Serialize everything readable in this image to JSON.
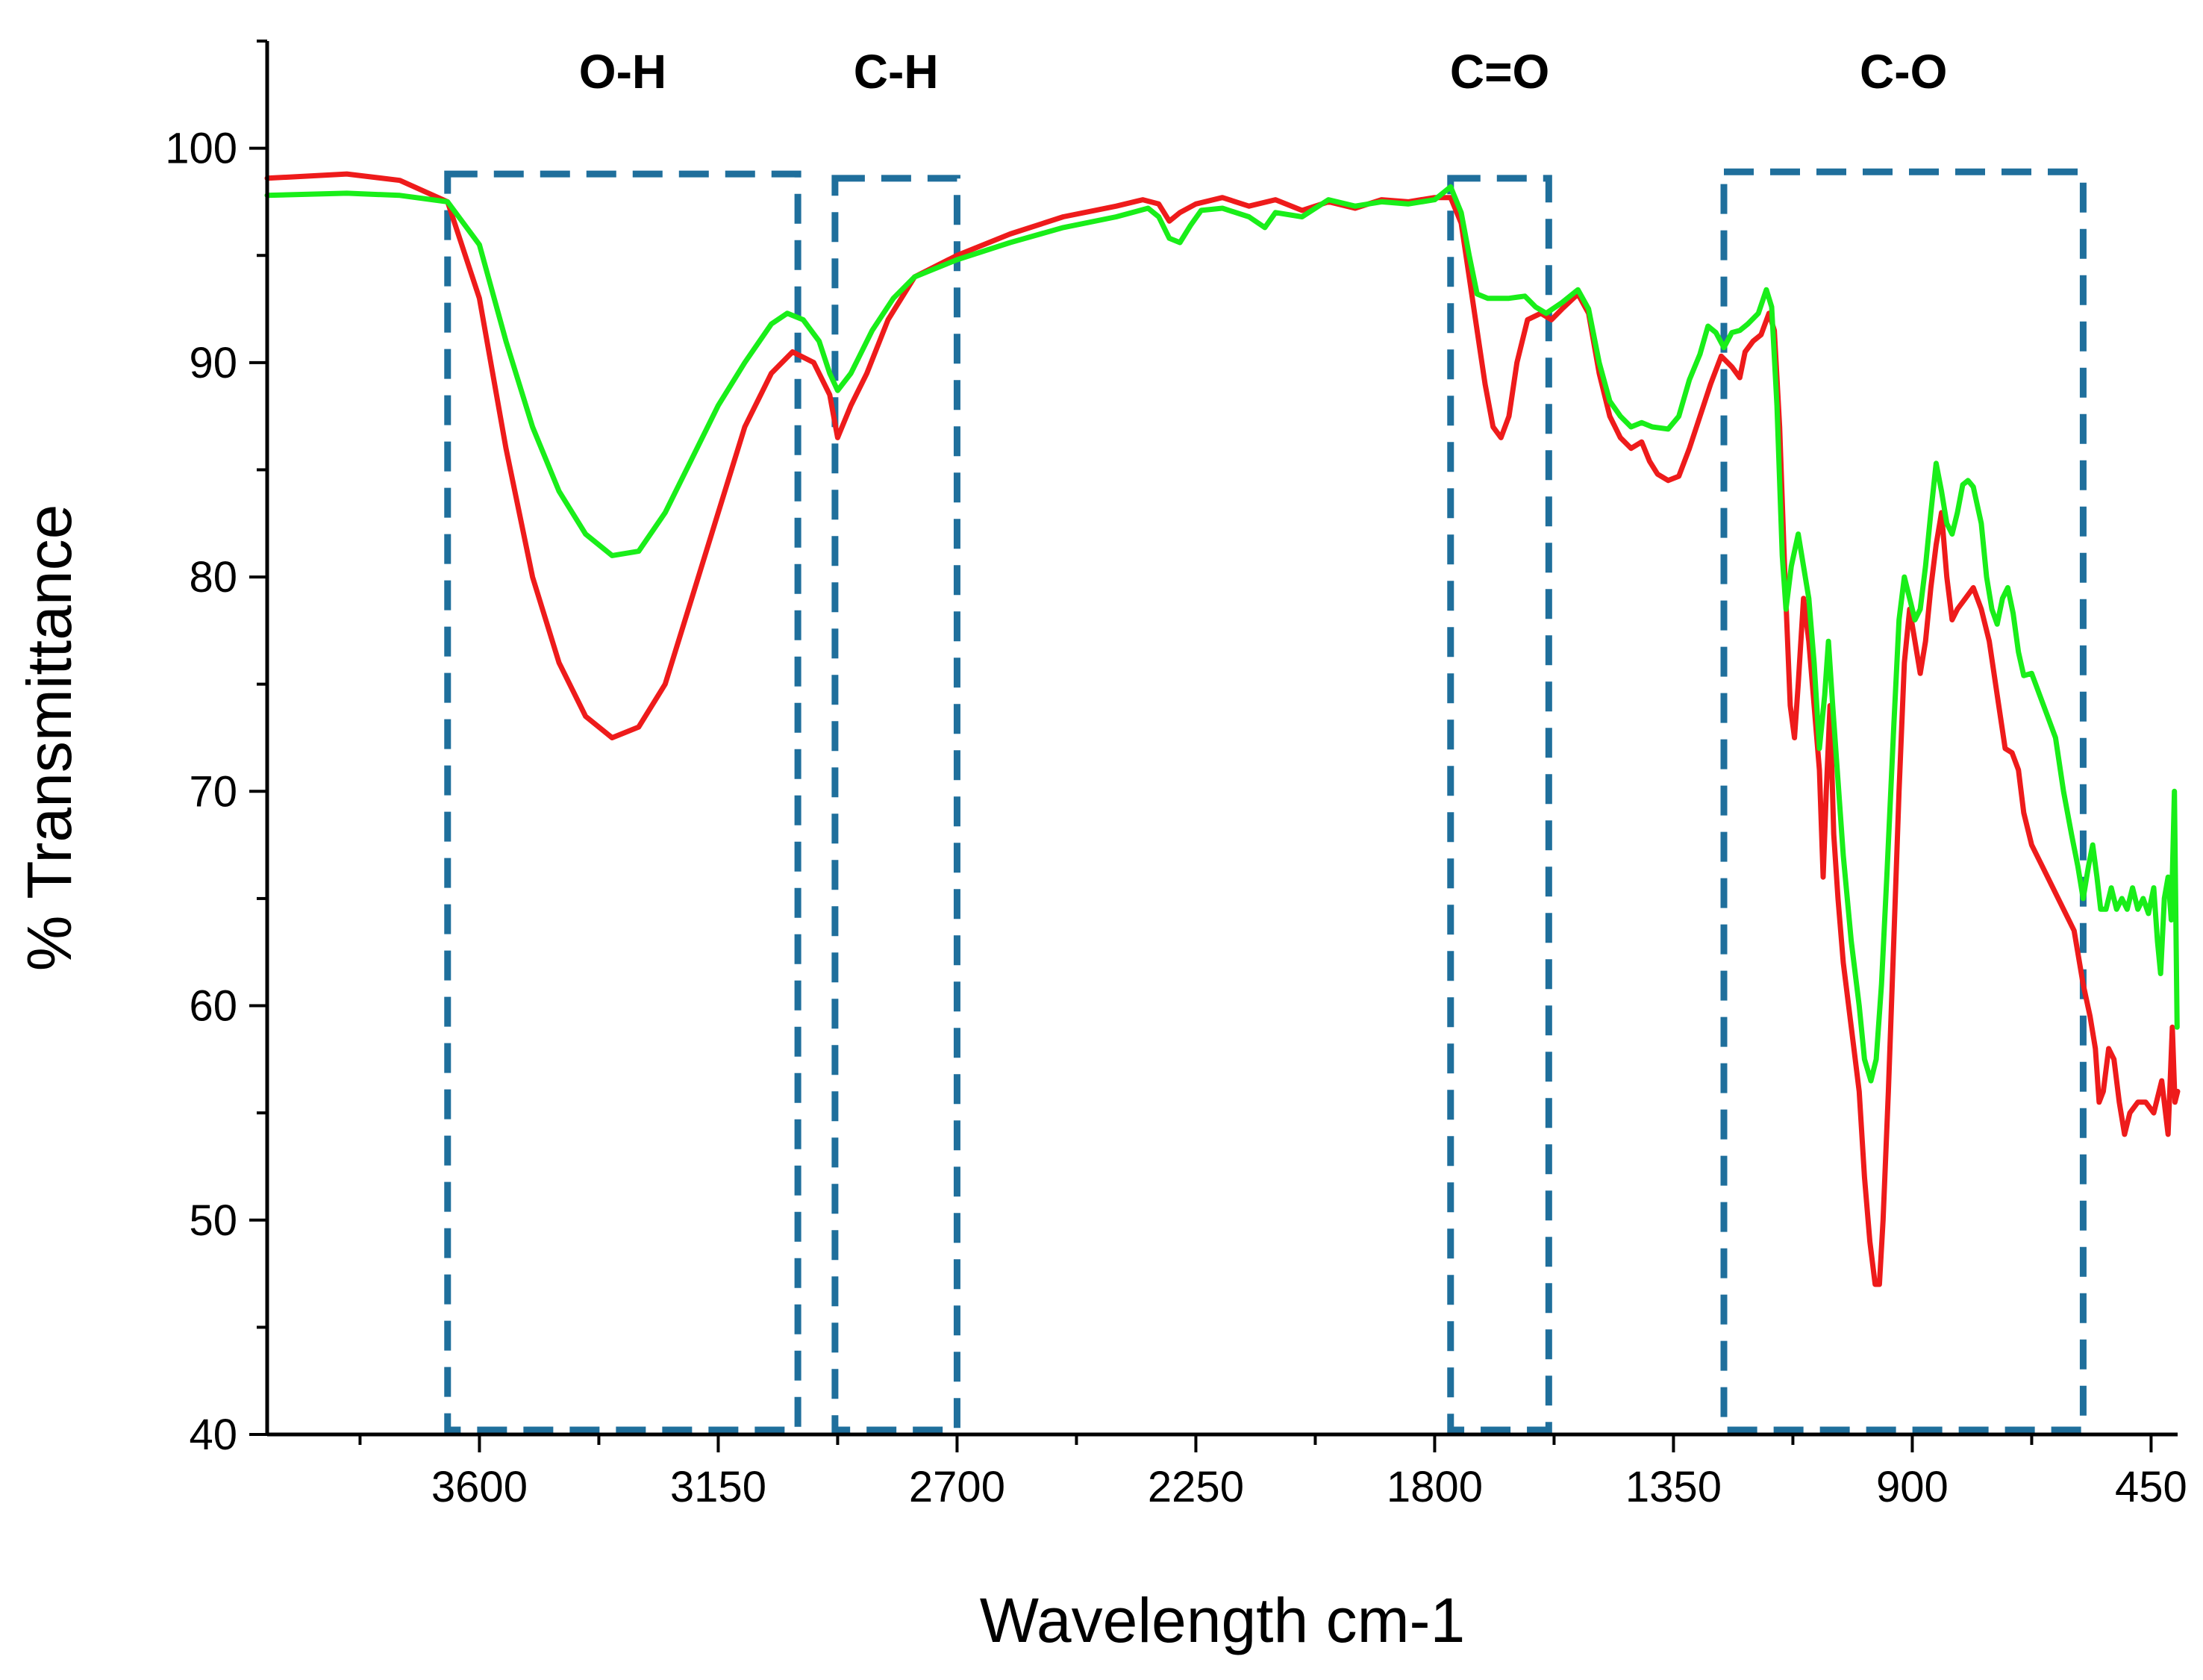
{
  "chart_data": {
    "type": "line",
    "title": "",
    "xlabel": "Wavelength cm-1",
    "ylabel": "% Transmittance",
    "xlim": [
      4000,
      400
    ],
    "ylim": [
      40,
      105
    ],
    "x_ticks": [
      3600,
      3150,
      2700,
      2250,
      1800,
      1350,
      900,
      450
    ],
    "x_tick_labels": [
      "3600",
      "3150",
      "2700",
      "2250",
      "1800",
      "1350",
      "900",
      "450"
    ],
    "y_ticks": [
      40,
      50,
      60,
      70,
      80,
      90,
      100
    ],
    "y_tick_labels": [
      "40",
      "50",
      "60",
      "70",
      "80",
      "90",
      "100"
    ],
    "colors": {
      "region": "#1f6f9c",
      "axis": "#000000"
    },
    "regions": [
      {
        "label": "O-H",
        "x_from": 3660,
        "x_to": 3000,
        "y_top": 98.8
      },
      {
        "label": "C-H",
        "x_from": 2930,
        "x_to": 2700,
        "y_top": 98.6
      },
      {
        "label": "C=O",
        "x_from": 1770,
        "x_to": 1585,
        "y_top": 98.6
      },
      {
        "label": "C-O",
        "x_from": 1255,
        "x_to": 578,
        "y_top": 98.9
      }
    ],
    "series": [
      {
        "name": "red",
        "color": "#ee1b1b",
        "points": [
          [
            4000,
            98.6
          ],
          [
            3850,
            98.8
          ],
          [
            3750,
            98.5
          ],
          [
            3660,
            97.5
          ],
          [
            3600,
            93
          ],
          [
            3550,
            86
          ],
          [
            3500,
            80
          ],
          [
            3450,
            76
          ],
          [
            3400,
            73.5
          ],
          [
            3350,
            72.5
          ],
          [
            3300,
            73
          ],
          [
            3250,
            75
          ],
          [
            3200,
            79
          ],
          [
            3150,
            83
          ],
          [
            3100,
            87
          ],
          [
            3050,
            89.5
          ],
          [
            3010,
            90.5
          ],
          [
            2970,
            90
          ],
          [
            2940,
            88.5
          ],
          [
            2925,
            86.5
          ],
          [
            2900,
            88
          ],
          [
            2870,
            89.5
          ],
          [
            2830,
            92
          ],
          [
            2780,
            94
          ],
          [
            2700,
            95
          ],
          [
            2600,
            96
          ],
          [
            2500,
            96.8
          ],
          [
            2400,
            97.3
          ],
          [
            2350,
            97.6
          ],
          [
            2320,
            97.4
          ],
          [
            2300,
            96.6
          ],
          [
            2280,
            97
          ],
          [
            2250,
            97.4
          ],
          [
            2200,
            97.7
          ],
          [
            2150,
            97.3
          ],
          [
            2100,
            97.6
          ],
          [
            2050,
            97.1
          ],
          [
            2000,
            97.5
          ],
          [
            1950,
            97.2
          ],
          [
            1900,
            97.6
          ],
          [
            1850,
            97.5
          ],
          [
            1800,
            97.7
          ],
          [
            1770,
            97.7
          ],
          [
            1750,
            96.5
          ],
          [
            1735,
            94
          ],
          [
            1720,
            91.5
          ],
          [
            1705,
            89
          ],
          [
            1690,
            87
          ],
          [
            1675,
            86.5
          ],
          [
            1660,
            87.5
          ],
          [
            1645,
            90
          ],
          [
            1625,
            92
          ],
          [
            1600,
            92.3
          ],
          [
            1580,
            92
          ],
          [
            1560,
            92.5
          ],
          [
            1530,
            93.2
          ],
          [
            1510,
            92.3
          ],
          [
            1490,
            89.5
          ],
          [
            1470,
            87.5
          ],
          [
            1450,
            86.5
          ],
          [
            1430,
            86
          ],
          [
            1410,
            86.3
          ],
          [
            1395,
            85.4
          ],
          [
            1380,
            84.8
          ],
          [
            1360,
            84.5
          ],
          [
            1340,
            84.7
          ],
          [
            1320,
            86
          ],
          [
            1300,
            87.5
          ],
          [
            1280,
            89
          ],
          [
            1260,
            90.3
          ],
          [
            1240,
            89.8
          ],
          [
            1225,
            89.3
          ],
          [
            1215,
            90.5
          ],
          [
            1200,
            91
          ],
          [
            1185,
            91.3
          ],
          [
            1170,
            92.3
          ],
          [
            1160,
            91.5
          ],
          [
            1150,
            87
          ],
          [
            1140,
            80
          ],
          [
            1130,
            74
          ],
          [
            1122,
            72.5
          ],
          [
            1115,
            75
          ],
          [
            1105,
            79
          ],
          [
            1095,
            77
          ],
          [
            1085,
            74
          ],
          [
            1075,
            71
          ],
          [
            1068,
            66
          ],
          [
            1062,
            70
          ],
          [
            1055,
            74
          ],
          [
            1048,
            68
          ],
          [
            1040,
            65
          ],
          [
            1030,
            62
          ],
          [
            1015,
            59
          ],
          [
            1000,
            56
          ],
          [
            990,
            52
          ],
          [
            980,
            49
          ],
          [
            970,
            47
          ],
          [
            962,
            47
          ],
          [
            955,
            50
          ],
          [
            945,
            56
          ],
          [
            935,
            63
          ],
          [
            925,
            70
          ],
          [
            915,
            76
          ],
          [
            905,
            78.5
          ],
          [
            895,
            77
          ],
          [
            885,
            75.5
          ],
          [
            875,
            77
          ],
          [
            865,
            79.5
          ],
          [
            855,
            81.5
          ],
          [
            845,
            83
          ],
          [
            835,
            80
          ],
          [
            825,
            78
          ],
          [
            815,
            78.5
          ],
          [
            800,
            79
          ],
          [
            785,
            79.5
          ],
          [
            770,
            78.5
          ],
          [
            755,
            77
          ],
          [
            740,
            74.5
          ],
          [
            725,
            72
          ],
          [
            712,
            71.8
          ],
          [
            700,
            71
          ],
          [
            690,
            69
          ],
          [
            675,
            67.5
          ],
          [
            655,
            66.5
          ],
          [
            635,
            65.5
          ],
          [
            615,
            64.5
          ],
          [
            595,
            63.5
          ],
          [
            578,
            61
          ],
          [
            565,
            59.5
          ],
          [
            555,
            58
          ],
          [
            548,
            55.5
          ],
          [
            540,
            56
          ],
          [
            530,
            58
          ],
          [
            520,
            57.5
          ],
          [
            510,
            55.5
          ],
          [
            500,
            54
          ],
          [
            490,
            55
          ],
          [
            475,
            55.5
          ],
          [
            460,
            55.5
          ],
          [
            445,
            55
          ],
          [
            430,
            56.5
          ],
          [
            418,
            54
          ],
          [
            410,
            59
          ],
          [
            405,
            55.5
          ],
          [
            400,
            56
          ]
        ]
      },
      {
        "name": "green",
        "color": "#19ee19",
        "points": [
          [
            4000,
            97.8
          ],
          [
            3850,
            97.9
          ],
          [
            3750,
            97.8
          ],
          [
            3660,
            97.5
          ],
          [
            3600,
            95.5
          ],
          [
            3550,
            91
          ],
          [
            3500,
            87
          ],
          [
            3450,
            84
          ],
          [
            3400,
            82
          ],
          [
            3350,
            81
          ],
          [
            3300,
            81.2
          ],
          [
            3250,
            83
          ],
          [
            3200,
            85.5
          ],
          [
            3150,
            88
          ],
          [
            3100,
            90
          ],
          [
            3050,
            91.8
          ],
          [
            3020,
            92.3
          ],
          [
            2990,
            92
          ],
          [
            2960,
            91
          ],
          [
            2940,
            89.5
          ],
          [
            2925,
            88.7
          ],
          [
            2900,
            89.5
          ],
          [
            2860,
            91.5
          ],
          [
            2820,
            93
          ],
          [
            2780,
            94
          ],
          [
            2700,
            94.8
          ],
          [
            2600,
            95.6
          ],
          [
            2500,
            96.3
          ],
          [
            2400,
            96.8
          ],
          [
            2340,
            97.2
          ],
          [
            2320,
            96.8
          ],
          [
            2300,
            95.8
          ],
          [
            2280,
            95.6
          ],
          [
            2260,
            96.4
          ],
          [
            2240,
            97.1
          ],
          [
            2200,
            97.2
          ],
          [
            2150,
            96.8
          ],
          [
            2120,
            96.3
          ],
          [
            2100,
            97
          ],
          [
            2050,
            96.8
          ],
          [
            2000,
            97.6
          ],
          [
            1950,
            97.3
          ],
          [
            1900,
            97.5
          ],
          [
            1850,
            97.4
          ],
          [
            1800,
            97.6
          ],
          [
            1770,
            98.2
          ],
          [
            1750,
            97
          ],
          [
            1735,
            95
          ],
          [
            1720,
            93.2
          ],
          [
            1700,
            93
          ],
          [
            1660,
            93
          ],
          [
            1630,
            93.1
          ],
          [
            1610,
            92.6
          ],
          [
            1590,
            92.3
          ],
          [
            1560,
            92.8
          ],
          [
            1530,
            93.4
          ],
          [
            1510,
            92.5
          ],
          [
            1490,
            90
          ],
          [
            1470,
            88.2
          ],
          [
            1450,
            87.5
          ],
          [
            1430,
            87
          ],
          [
            1410,
            87.2
          ],
          [
            1390,
            87
          ],
          [
            1360,
            86.9
          ],
          [
            1340,
            87.5
          ],
          [
            1320,
            89.2
          ],
          [
            1300,
            90.4
          ],
          [
            1285,
            91.7
          ],
          [
            1270,
            91.4
          ],
          [
            1255,
            90.7
          ],
          [
            1240,
            91.4
          ],
          [
            1225,
            91.5
          ],
          [
            1210,
            91.8
          ],
          [
            1190,
            92.3
          ],
          [
            1175,
            93.4
          ],
          [
            1165,
            92.6
          ],
          [
            1155,
            88
          ],
          [
            1145,
            81
          ],
          [
            1138,
            78.5
          ],
          [
            1128,
            80.5
          ],
          [
            1115,
            82
          ],
          [
            1105,
            80.5
          ],
          [
            1095,
            79
          ],
          [
            1085,
            76
          ],
          [
            1075,
            72
          ],
          [
            1065,
            74.5
          ],
          [
            1058,
            77
          ],
          [
            1050,
            74
          ],
          [
            1040,
            70.5
          ],
          [
            1030,
            67
          ],
          [
            1015,
            63
          ],
          [
            1000,
            60
          ],
          [
            990,
            57.5
          ],
          [
            978,
            56.5
          ],
          [
            968,
            57.5
          ],
          [
            958,
            61
          ],
          [
            948,
            66
          ],
          [
            935,
            73
          ],
          [
            925,
            78
          ],
          [
            915,
            80
          ],
          [
            905,
            79
          ],
          [
            895,
            78
          ],
          [
            885,
            78.5
          ],
          [
            875,
            80.5
          ],
          [
            865,
            83
          ],
          [
            855,
            85.3
          ],
          [
            845,
            84
          ],
          [
            835,
            82.5
          ],
          [
            825,
            82
          ],
          [
            815,
            83
          ],
          [
            805,
            84.3
          ],
          [
            795,
            84.5
          ],
          [
            785,
            84.2
          ],
          [
            770,
            82.5
          ],
          [
            760,
            80
          ],
          [
            750,
            78.5
          ],
          [
            740,
            77.8
          ],
          [
            730,
            79
          ],
          [
            720,
            79.5
          ],
          [
            710,
            78.3
          ],
          [
            700,
            76.5
          ],
          [
            690,
            75.4
          ],
          [
            675,
            75.5
          ],
          [
            660,
            74.5
          ],
          [
            645,
            73.5
          ],
          [
            630,
            72.5
          ],
          [
            615,
            70
          ],
          [
            600,
            68
          ],
          [
            588,
            66.5
          ],
          [
            578,
            65
          ],
          [
            568,
            66.5
          ],
          [
            560,
            67.5
          ],
          [
            552,
            66
          ],
          [
            545,
            64.5
          ],
          [
            535,
            64.5
          ],
          [
            525,
            65.5
          ],
          [
            515,
            64.5
          ],
          [
            505,
            65
          ],
          [
            495,
            64.5
          ],
          [
            485,
            65.5
          ],
          [
            475,
            64.5
          ],
          [
            465,
            65
          ],
          [
            455,
            64.3
          ],
          [
            445,
            65.5
          ],
          [
            438,
            63
          ],
          [
            432,
            61.5
          ],
          [
            425,
            65
          ],
          [
            418,
            66
          ],
          [
            412,
            64
          ],
          [
            406,
            70
          ],
          [
            401,
            59
          ]
        ]
      }
    ]
  }
}
